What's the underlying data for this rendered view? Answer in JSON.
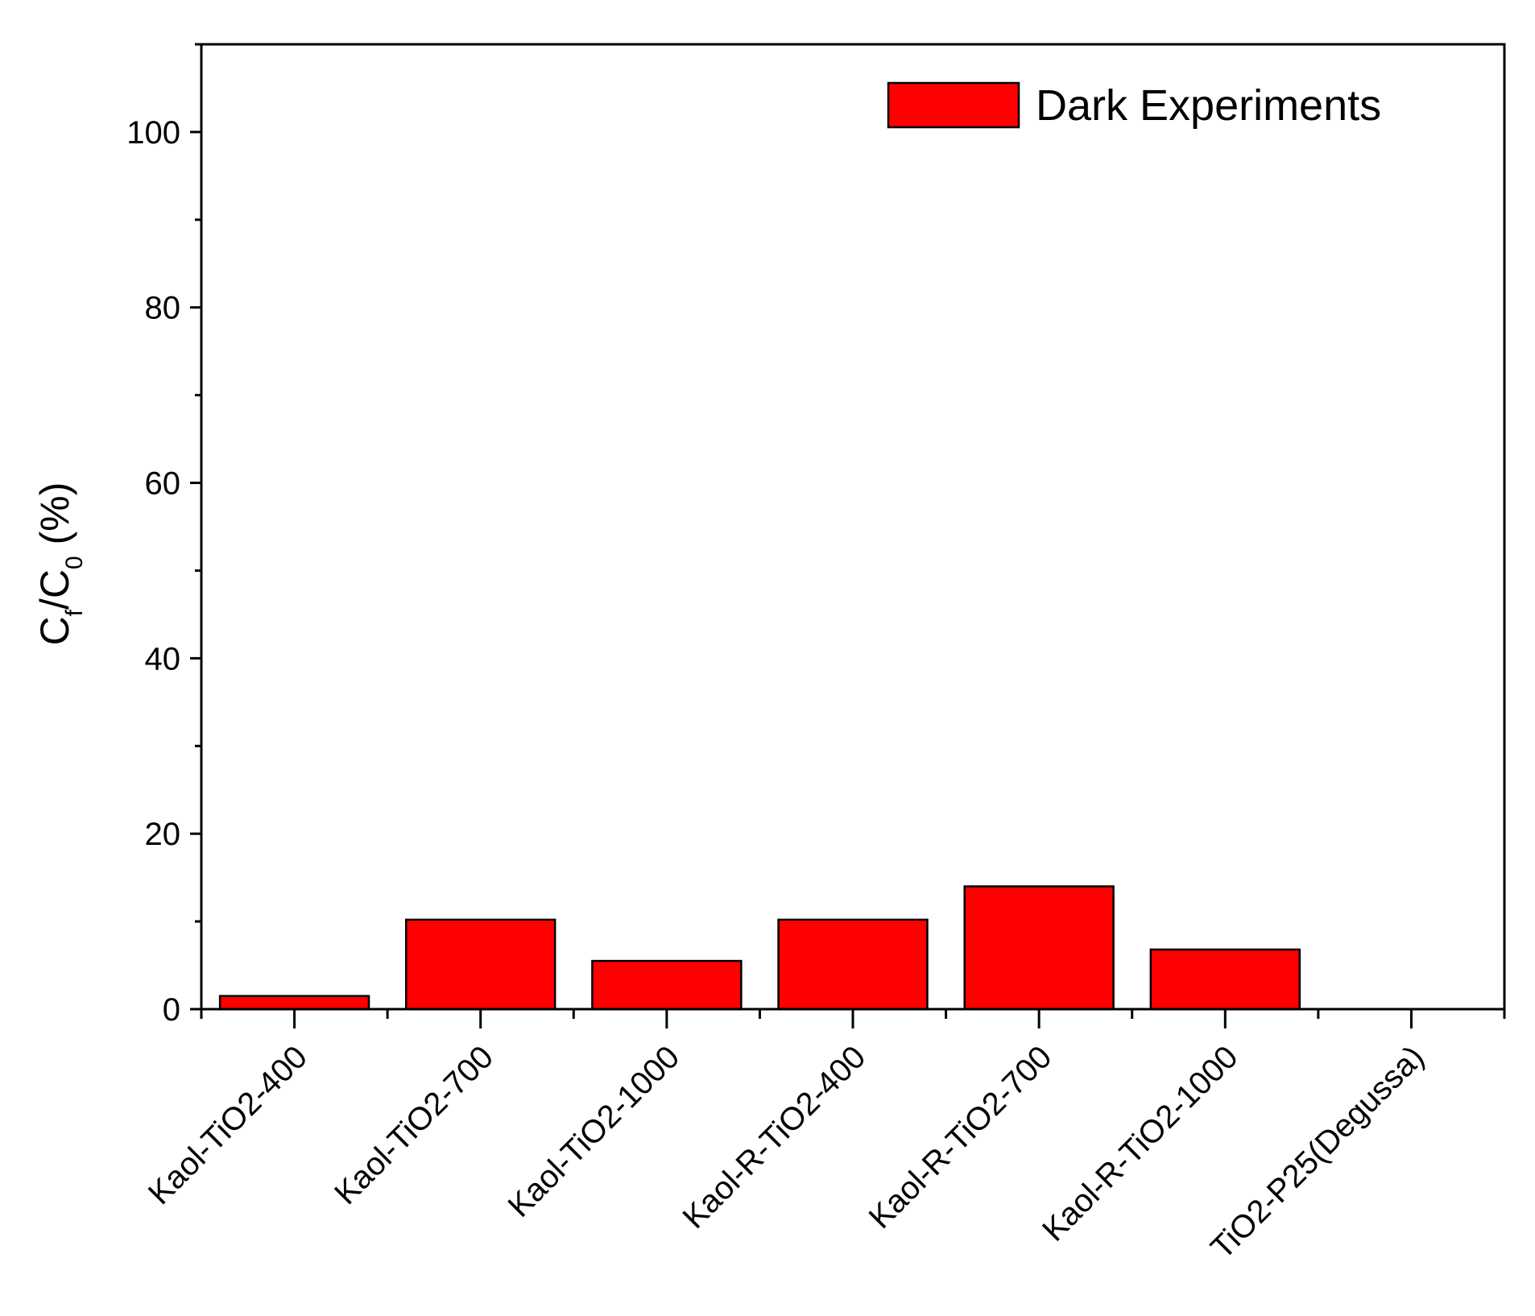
{
  "chart_data": {
    "type": "bar",
    "y_label": [
      "C",
      "f",
      "/C",
      "0",
      " (%)"
    ],
    "categories": [
      "Kaol-TiO2-400",
      "Kaol-TiO2-700",
      "Kaol-TiO2-1000",
      "Kaol-R-TiO2-400",
      "Kaol-R-TiO2-700",
      "Kaol-R-TiO2-1000",
      "TiO2-P25(Degussa)"
    ],
    "series": [
      {
        "name": "Dark Experiments",
        "color": "#ff0000",
        "values": [
          1.5,
          10.2,
          5.5,
          10.2,
          14,
          6.8,
          0
        ]
      }
    ],
    "ylim": [
      0,
      110
    ],
    "yticks": [
      0,
      20,
      40,
      60,
      80,
      100
    ],
    "legend": "upper-right",
    "grid": false
  }
}
